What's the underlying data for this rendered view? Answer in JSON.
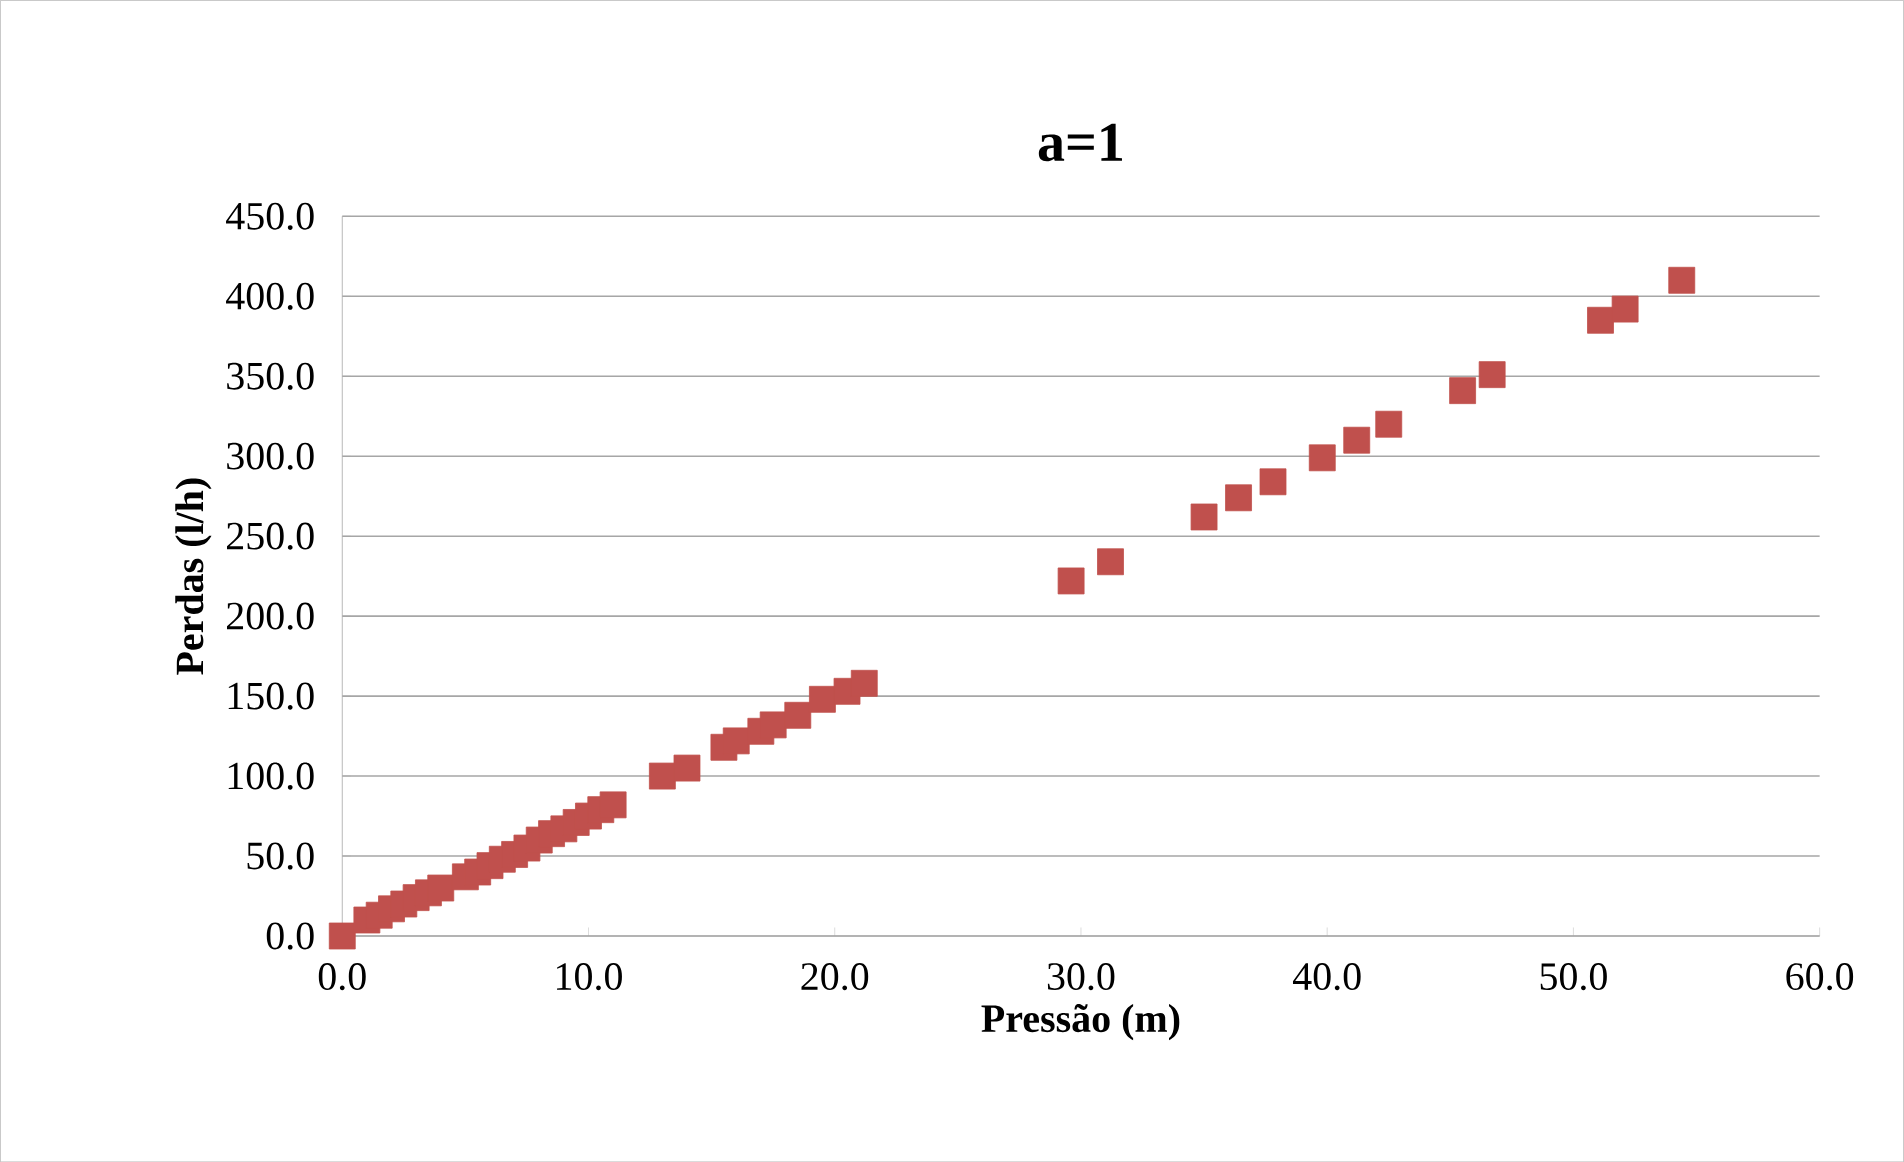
{
  "chart_data": {
    "type": "scatter",
    "title": "a=1",
    "xlabel": "Pressão (m)",
    "ylabel": "Perdas (l/h)",
    "marker": "square",
    "grid": "y",
    "xlim": [
      0,
      60
    ],
    "ylim": [
      0,
      450
    ],
    "xticks": [
      {
        "value": 0,
        "label": "0.0"
      },
      {
        "value": 10,
        "label": "10.0"
      },
      {
        "value": 20,
        "label": "20.0"
      },
      {
        "value": 30,
        "label": "30.0"
      },
      {
        "value": 40,
        "label": "40.0"
      },
      {
        "value": 50,
        "label": "50.0"
      },
      {
        "value": 60,
        "label": "60.0"
      }
    ],
    "yticks": [
      {
        "value": 0,
        "label": "0.0"
      },
      {
        "value": 50,
        "label": "50.0"
      },
      {
        "value": 100,
        "label": "100.0"
      },
      {
        "value": 150,
        "label": "150.0"
      },
      {
        "value": 200,
        "label": "200.0"
      },
      {
        "value": 250,
        "label": "250.0"
      },
      {
        "value": 300,
        "label": "300.0"
      },
      {
        "value": 350,
        "label": "350.0"
      },
      {
        "value": 400,
        "label": "400.0"
      },
      {
        "value": 450,
        "label": "450.0"
      }
    ],
    "series": [
      {
        "color": "#c0504d",
        "x": [
          0,
          1,
          1.5,
          2,
          2.5,
          3,
          3.5,
          4,
          5,
          5.5,
          6,
          6.5,
          7,
          7.5,
          8,
          8.5,
          9,
          9.5,
          10,
          10.5,
          11,
          12.7,
          13,
          14,
          15.5,
          16,
          17,
          17.5,
          18.5,
          19.5,
          20.5,
          21.2,
          29.6,
          31.2,
          35,
          35.1,
          36.4,
          37.8,
          39.8,
          41.2,
          42.5,
          45.5,
          46.7,
          51.1,
          52.1,
          54.4
        ],
        "values": [
          0,
          10,
          13,
          17,
          20,
          24,
          27,
          30,
          37,
          40,
          44,
          48,
          51,
          55,
          60,
          64,
          67,
          71,
          75,
          79,
          82,
          null,
          100,
          105,
          118,
          122,
          128,
          132,
          138,
          148,
          153,
          158,
          222,
          234,
          262,
          null,
          274,
          284,
          299,
          310,
          320,
          341,
          351,
          385,
          392,
          410
        ]
      }
    ]
  }
}
